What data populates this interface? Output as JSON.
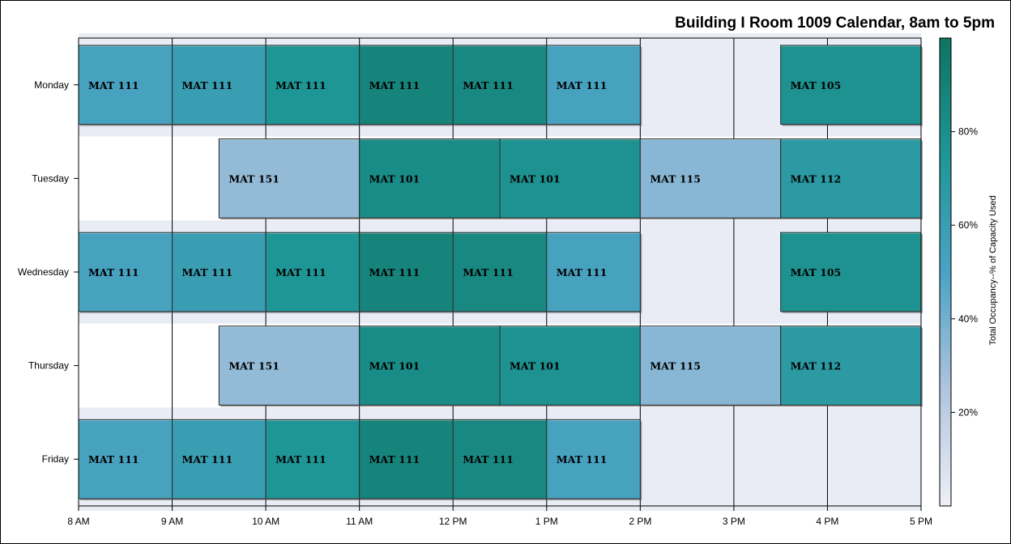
{
  "chart_data": {
    "type": "bar",
    "orientation": "horizontal-timeline",
    "title": "Building I Room 1009 Calendar, 8am to 5pm",
    "x_ticks": [
      "8 AM",
      "9 AM",
      "10 AM",
      "11 AM",
      "12 PM",
      "1 PM",
      "2 PM",
      "3 PM",
      "4 PM",
      "5 PM"
    ],
    "xlim": [
      8,
      17
    ],
    "days": [
      "Monday",
      "Tuesday",
      "Wednesday",
      "Thursday",
      "Friday"
    ],
    "colorbar": {
      "title": "Total Occupancy--% of Capacity Used",
      "ticks": [
        {
          "value": 20,
          "label": "20%"
        },
        {
          "value": 40,
          "label": "40%"
        },
        {
          "value": 60,
          "label": "60%"
        },
        {
          "value": 80,
          "label": "80%"
        }
      ],
      "range": [
        0,
        100
      ],
      "colors": [
        "#EEF0F7",
        "#B0C4DE",
        "#4AA3C4",
        "#1F9696",
        "#0E7462"
      ]
    },
    "background_bands": [
      {
        "day": "Monday",
        "start": 8,
        "end": 17
      },
      {
        "day": "Wednesday",
        "start": 8,
        "end": 17
      },
      {
        "day": "Friday",
        "start": 8,
        "end": 17
      }
    ],
    "events": [
      {
        "day": "Monday",
        "start": 8,
        "end": 9,
        "label": "MAT 111",
        "occupancy": 52
      },
      {
        "day": "Monday",
        "start": 9,
        "end": 10,
        "label": "MAT 111",
        "occupancy": 60
      },
      {
        "day": "Monday",
        "start": 10,
        "end": 11,
        "label": "MAT 111",
        "occupancy": 75
      },
      {
        "day": "Monday",
        "start": 11,
        "end": 12,
        "label": "MAT 111",
        "occupancy": 88
      },
      {
        "day": "Monday",
        "start": 12,
        "end": 13,
        "label": "MAT 111",
        "occupancy": 85
      },
      {
        "day": "Monday",
        "start": 13,
        "end": 14,
        "label": "MAT 111",
        "occupancy": 52
      },
      {
        "day": "Monday",
        "start": 15.5,
        "end": 17,
        "label": "MAT 105",
        "occupancy": 78
      },
      {
        "day": "Tuesday",
        "start": 9.5,
        "end": 11,
        "label": "MAT 151",
        "occupancy": 32
      },
      {
        "day": "Tuesday",
        "start": 11,
        "end": 12.5,
        "label": "MAT 101",
        "occupancy": 82
      },
      {
        "day": "Tuesday",
        "start": 12.5,
        "end": 14,
        "label": "MAT 101",
        "occupancy": 78
      },
      {
        "day": "Tuesday",
        "start": 14,
        "end": 15.5,
        "label": "MAT 115",
        "occupancy": 35
      },
      {
        "day": "Tuesday",
        "start": 15.5,
        "end": 17,
        "label": "MAT 112",
        "occupancy": 68
      },
      {
        "day": "Wednesday",
        "start": 8,
        "end": 9,
        "label": "MAT 111",
        "occupancy": 52
      },
      {
        "day": "Wednesday",
        "start": 9,
        "end": 10,
        "label": "MAT 111",
        "occupancy": 60
      },
      {
        "day": "Wednesday",
        "start": 10,
        "end": 11,
        "label": "MAT 111",
        "occupancy": 75
      },
      {
        "day": "Wednesday",
        "start": 11,
        "end": 12,
        "label": "MAT 111",
        "occupancy": 88
      },
      {
        "day": "Wednesday",
        "start": 12,
        "end": 13,
        "label": "MAT 111",
        "occupancy": 85
      },
      {
        "day": "Wednesday",
        "start": 13,
        "end": 14,
        "label": "MAT 111",
        "occupancy": 52
      },
      {
        "day": "Wednesday",
        "start": 15.5,
        "end": 17,
        "label": "MAT 105",
        "occupancy": 78
      },
      {
        "day": "Thursday",
        "start": 9.5,
        "end": 11,
        "label": "MAT 151",
        "occupancy": 32
      },
      {
        "day": "Thursday",
        "start": 11,
        "end": 12.5,
        "label": "MAT 101",
        "occupancy": 82
      },
      {
        "day": "Thursday",
        "start": 12.5,
        "end": 14,
        "label": "MAT 101",
        "occupancy": 78
      },
      {
        "day": "Thursday",
        "start": 14,
        "end": 15.5,
        "label": "MAT 115",
        "occupancy": 35
      },
      {
        "day": "Thursday",
        "start": 15.5,
        "end": 17,
        "label": "MAT 112",
        "occupancy": 68
      },
      {
        "day": "Friday",
        "start": 8,
        "end": 9,
        "label": "MAT 111",
        "occupancy": 52
      },
      {
        "day": "Friday",
        "start": 9,
        "end": 10,
        "label": "MAT 111",
        "occupancy": 60
      },
      {
        "day": "Friday",
        "start": 10,
        "end": 11,
        "label": "MAT 111",
        "occupancy": 75
      },
      {
        "day": "Friday",
        "start": 11,
        "end": 12,
        "label": "MAT 111",
        "occupancy": 88
      },
      {
        "day": "Friday",
        "start": 12,
        "end": 13,
        "label": "MAT 111",
        "occupancy": 85
      },
      {
        "day": "Friday",
        "start": 13,
        "end": 14,
        "label": "MAT 111",
        "occupancy": 52
      }
    ]
  }
}
